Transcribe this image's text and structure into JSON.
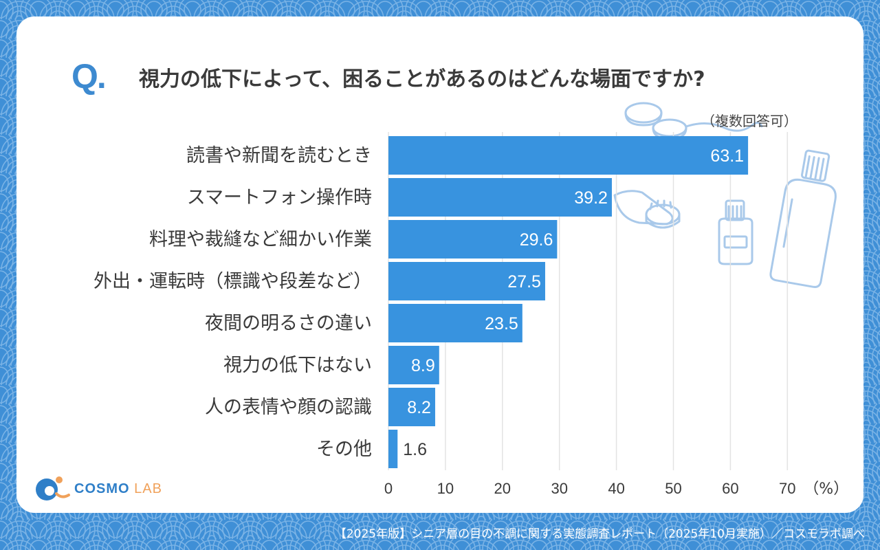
{
  "question_mark": "Q.",
  "question": "視力の低下によって、困ることがあるのはどんな場面ですか?",
  "note": "（複数回答可）",
  "footer": "【2025年版】シニア層の目の不調に関する実態調査レポート（2025年10月実施）／コスモラボ調べ",
  "logo": {
    "main": "COSMO",
    "sub": "LAB"
  },
  "colors": {
    "bar": "#3893df",
    "background": "#3f8fd6",
    "grid": "#e3e3e3",
    "label": "#3a3a3a"
  },
  "chart_data": {
    "type": "bar",
    "orientation": "horizontal",
    "title": "視力の低下によって、困ることがあるのはどんな場面ですか?",
    "unit": "（%）",
    "categories": [
      "読書や新聞を読むとき",
      "スマートフォン操作時",
      "料理や裁縫など細かい作業",
      "外出・運転時（標識や段差など）",
      "夜間の明るさの違い",
      "視力の低下はない",
      "人の表情や顔の認識",
      "その他"
    ],
    "values": [
      63.1,
      39.2,
      29.6,
      27.5,
      23.5,
      8.9,
      8.2,
      1.6
    ],
    "value_labels": [
      "63.1",
      "39.2",
      "29.6",
      "27.5",
      "23.5",
      "8.9",
      "8.2",
      "1.6"
    ],
    "xlim": [
      0,
      70
    ],
    "xticks": [
      "0",
      "10",
      "20",
      "30",
      "40",
      "50",
      "60",
      "70"
    ],
    "grid": true
  }
}
